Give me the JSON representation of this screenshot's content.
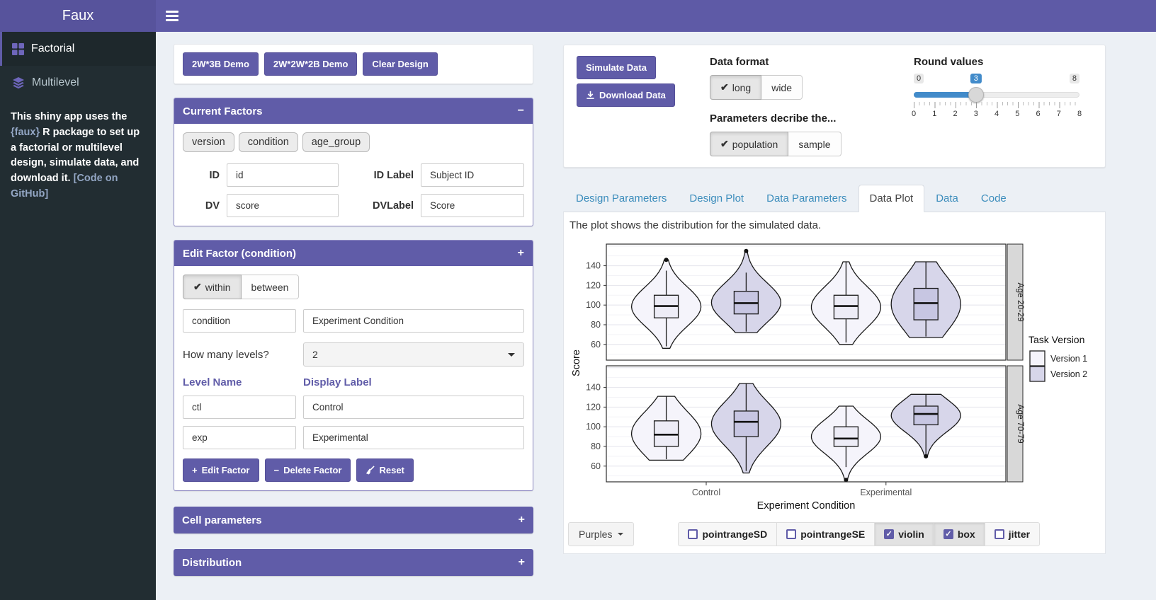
{
  "app": {
    "title": "Faux"
  },
  "colors": {
    "accent": "#605ca8",
    "navbar": "#5e5aa6",
    "sidebar_bg": "#222d32",
    "page_bg": "#ecf0f5",
    "link_blue": "#3c8dbc",
    "slider_blue": "#428bca"
  },
  "sidebar": {
    "items": [
      {
        "label": "Factorial",
        "icon": "grid-icon",
        "active": true
      },
      {
        "label": "Multilevel",
        "icon": "layers-icon",
        "active": false
      }
    ],
    "about": {
      "pre": "This shiny app uses the ",
      "pkg": "{faux}",
      "mid": " R package to set up a factorial or multilevel design, simulate data, and download it. ",
      "link": "[Code on GitHub]"
    }
  },
  "design_buttons": {
    "demo1": "2W*3B Demo",
    "demo2": "2W*2W*2B Demo",
    "clear": "Clear Design"
  },
  "current_factors": {
    "title": "Current Factors",
    "collapse_icon": "−",
    "chips": [
      "version",
      "condition",
      "age_group"
    ],
    "id_label": "ID",
    "id_value": "id",
    "idlabel_label": "ID Label",
    "idlabel_value": "Subject ID",
    "dv_label": "DV",
    "dv_value": "score",
    "dvlabel_label": "DVLabel",
    "dvlabel_value": "Score"
  },
  "edit_factor": {
    "title": "Edit Factor (condition)",
    "collapse_icon": "+",
    "within_label": "within",
    "between_label": "between",
    "name_value": "condition",
    "display_value": "Experiment Condition",
    "levels_question": "How many levels?",
    "levels_value": "2",
    "col1": "Level Name",
    "col2": "Display Label",
    "level1_name": "ctl",
    "level1_label": "Control",
    "level2_name": "exp",
    "level2_label": "Experimental",
    "edit_btn": "Edit Factor",
    "delete_btn": "Delete Factor",
    "reset_btn": "Reset"
  },
  "cell_parameters": {
    "title": "Cell parameters",
    "collapse_icon": "+"
  },
  "distribution": {
    "title": "Distribution",
    "collapse_icon": "+"
  },
  "sim_panel": {
    "simulate": "Simulate Data",
    "download": "Download Data",
    "data_format": {
      "label": "Data format",
      "opt1": "long",
      "opt2": "wide",
      "selected": "long"
    },
    "params": {
      "label": "Parameters decribe the...",
      "opt1": "population",
      "opt2": "sample",
      "selected": "population"
    },
    "round": {
      "label": "Round values",
      "min": "0",
      "max": "8",
      "value": "3",
      "ticks": [
        "0",
        "1",
        "2",
        "3",
        "4",
        "5",
        "6",
        "7",
        "8"
      ]
    }
  },
  "tabs": [
    {
      "label": "Design Parameters",
      "active": false
    },
    {
      "label": "Design Plot",
      "active": false
    },
    {
      "label": "Data Parameters",
      "active": false
    },
    {
      "label": "Data Plot",
      "active": true
    },
    {
      "label": "Data",
      "active": false
    },
    {
      "label": "Code",
      "active": false
    }
  ],
  "plot_caption": "The plot shows the distribution for the simulated data.",
  "chart_data": {
    "type": "violin",
    "xlabel": "Experiment Condition",
    "ylabel": "Score",
    "x_categories": [
      "Control",
      "Experimental"
    ],
    "y_ticks": [
      60,
      80,
      100,
      120,
      140
    ],
    "y_range": [
      44,
      162
    ],
    "legend": {
      "title": "Task Version",
      "entries": [
        {
          "label": "Version 1",
          "fill": "#f5f4fb",
          "box_fill": "#edecf6"
        },
        {
          "label": "Version 2",
          "fill": "#d7d6ea",
          "box_fill": "#c7c6e2"
        }
      ]
    },
    "facets": [
      {
        "label": "Age 20-29",
        "groups": [
          {
            "x": "Control",
            "version": "Version 1",
            "median": 99,
            "q1": 87,
            "q3": 110,
            "whisker_lo": 58,
            "whisker_hi": 135,
            "violin_lo": 56,
            "violin_hi": 146,
            "outliers": [
              146
            ]
          },
          {
            "x": "Control",
            "version": "Version 2",
            "median": 102,
            "q1": 91,
            "q3": 114,
            "whisker_lo": 73,
            "whisker_hi": 133,
            "violin_lo": 72,
            "violin_hi": 155,
            "outliers": [
              155
            ]
          },
          {
            "x": "Experimental",
            "version": "Version 1",
            "median": 99,
            "q1": 86,
            "q3": 110,
            "whisker_lo": 62,
            "whisker_hi": 144,
            "violin_lo": 60,
            "violin_hi": 144,
            "outliers": []
          },
          {
            "x": "Experimental",
            "version": "Version 2",
            "median": 102,
            "q1": 85,
            "q3": 117,
            "whisker_lo": 68,
            "whisker_hi": 144,
            "violin_lo": 67,
            "violin_hi": 144,
            "outliers": []
          }
        ]
      },
      {
        "label": "Age 70-79",
        "groups": [
          {
            "x": "Control",
            "version": "Version 1",
            "median": 92,
            "q1": 80,
            "q3": 106,
            "whisker_lo": 67,
            "whisker_hi": 131,
            "violin_lo": 66,
            "violin_hi": 131,
            "outliers": []
          },
          {
            "x": "Control",
            "version": "Version 2",
            "median": 105,
            "q1": 90,
            "q3": 116,
            "whisker_lo": 55,
            "whisker_hi": 144,
            "violin_lo": 53,
            "violin_hi": 144,
            "outliers": []
          },
          {
            "x": "Experimental",
            "version": "Version 1",
            "median": 88,
            "q1": 80,
            "q3": 100,
            "whisker_lo": 59,
            "whisker_hi": 121,
            "violin_lo": 47,
            "violin_hi": 121,
            "outliers": [
              46
            ]
          },
          {
            "x": "Experimental",
            "version": "Version 2",
            "median": 113,
            "q1": 102,
            "q3": 121,
            "whisker_lo": 71,
            "whisker_hi": 133,
            "violin_lo": 69,
            "violin_hi": 133,
            "outliers": [
              70
            ]
          }
        ]
      }
    ]
  },
  "plot_controls": {
    "palette": "Purples",
    "checkboxes": [
      {
        "label": "pointrangeSD",
        "checked": false
      },
      {
        "label": "pointrangeSE",
        "checked": false
      },
      {
        "label": "violin",
        "checked": true
      },
      {
        "label": "box",
        "checked": true
      },
      {
        "label": "jitter",
        "checked": false
      }
    ]
  }
}
